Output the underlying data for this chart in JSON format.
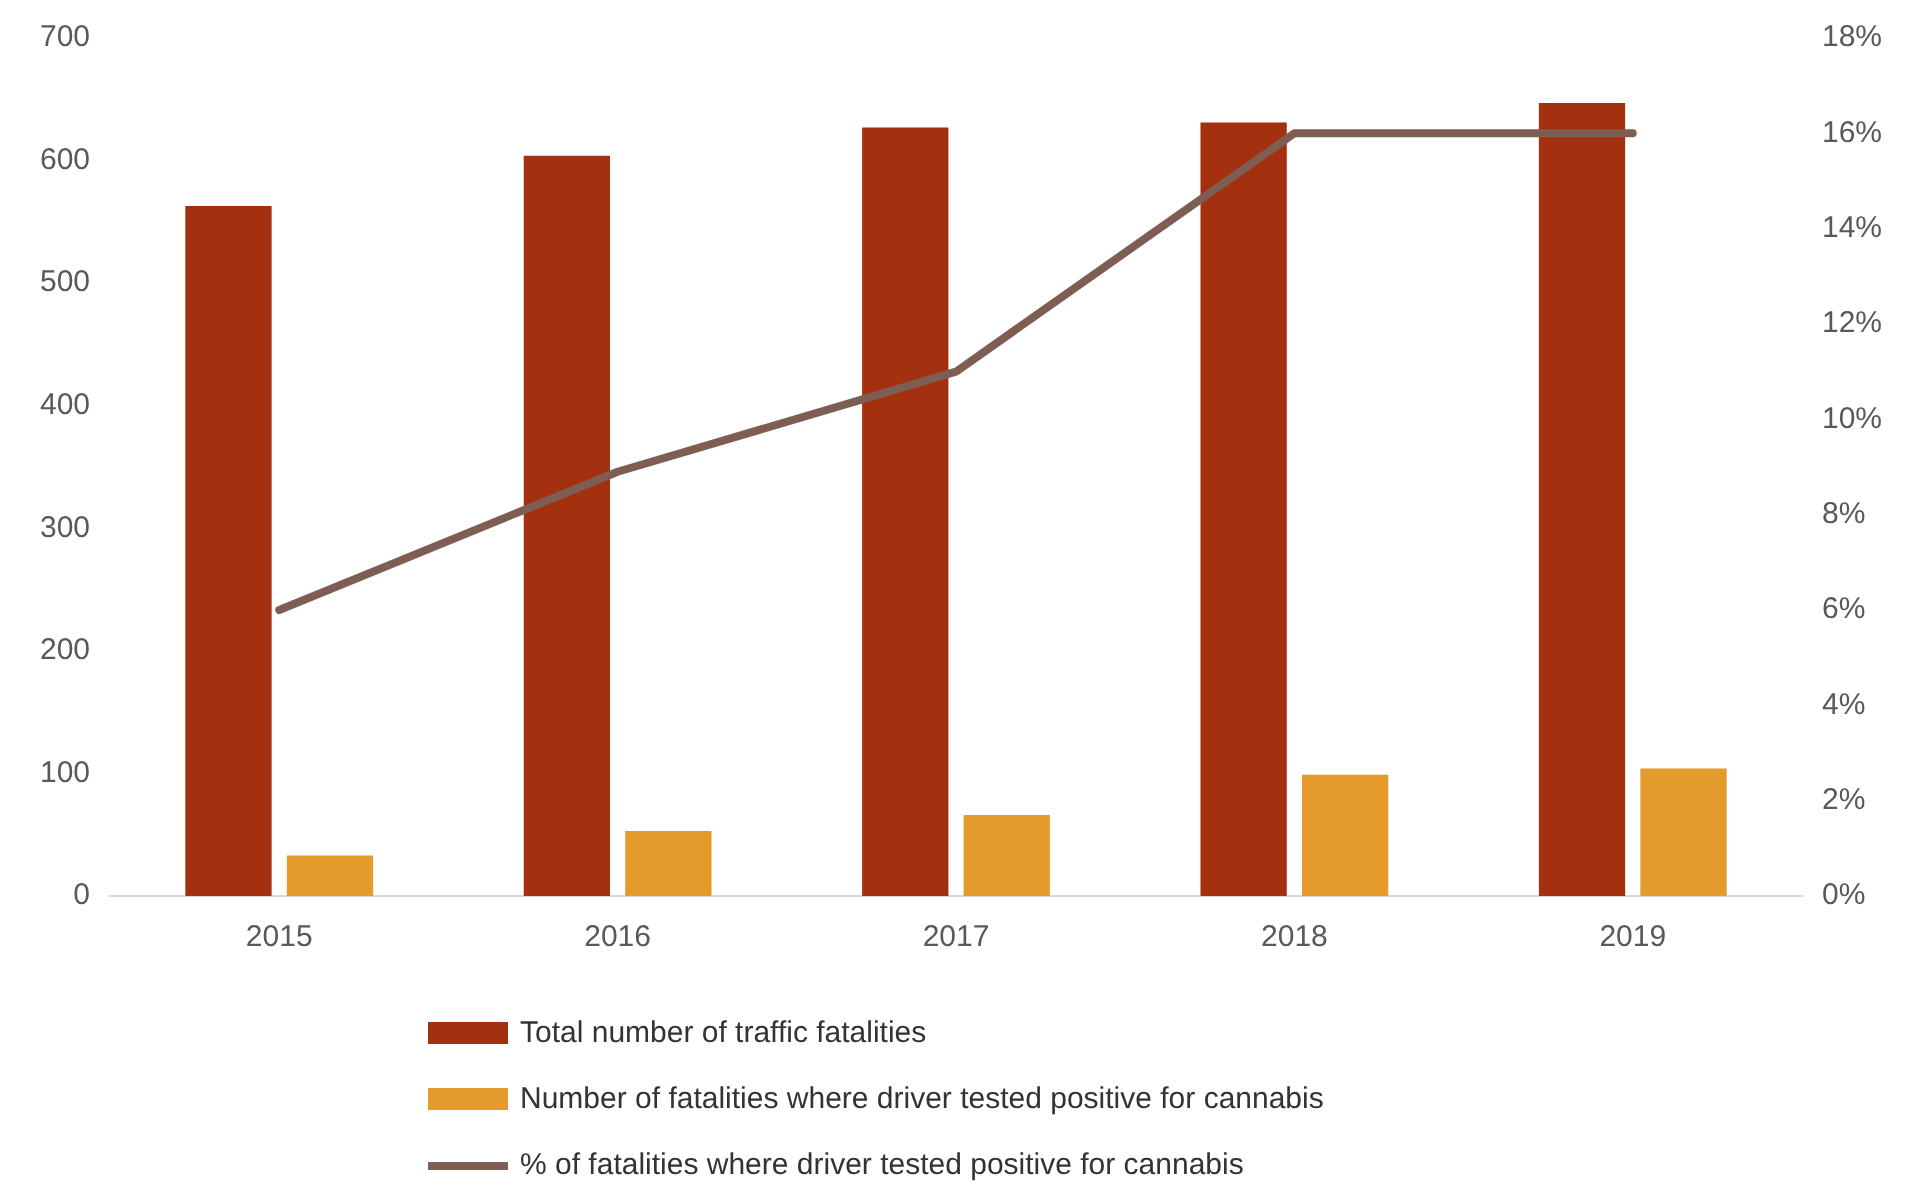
{
  "chart_data": {
    "type": "bar",
    "categories": [
      "2015",
      "2016",
      "2017",
      "2018",
      "2019"
    ],
    "series": [
      {
        "name": "Total number of traffic fatalities",
        "color": "#a3300f",
        "values": [
          563,
          604,
          627,
          631,
          647
        ]
      },
      {
        "name": "Number of fatalities where driver tested positive for cannabis",
        "color": "#e39b2b",
        "values": [
          33,
          53,
          66,
          99,
          104
        ]
      },
      {
        "name": "% of fatalities where driver tested positive for cannabis",
        "type": "line",
        "axis": "y2",
        "color": "#7e5e52",
        "values": [
          6,
          8.9,
          11,
          16,
          16
        ]
      }
    ],
    "ylim": [
      0,
      700
    ],
    "yticks": [
      0,
      100,
      200,
      300,
      400,
      500,
      600,
      700
    ],
    "y2lim": [
      0,
      18
    ],
    "y2ticks": [
      {
        "value": 0,
        "label": "0%"
      },
      {
        "value": 2,
        "label": "2%"
      },
      {
        "value": 4,
        "label": "4%"
      },
      {
        "value": 6,
        "label": "6%"
      },
      {
        "value": 8,
        "label": "8%"
      },
      {
        "value": 10,
        "label": "10%"
      },
      {
        "value": 12,
        "label": "12%"
      },
      {
        "value": 14,
        "label": "14%"
      },
      {
        "value": 16,
        "label": "16%"
      },
      {
        "value": 18,
        "label": "18%"
      }
    ],
    "grid": false,
    "legend": "bottom",
    "marker": "none"
  }
}
